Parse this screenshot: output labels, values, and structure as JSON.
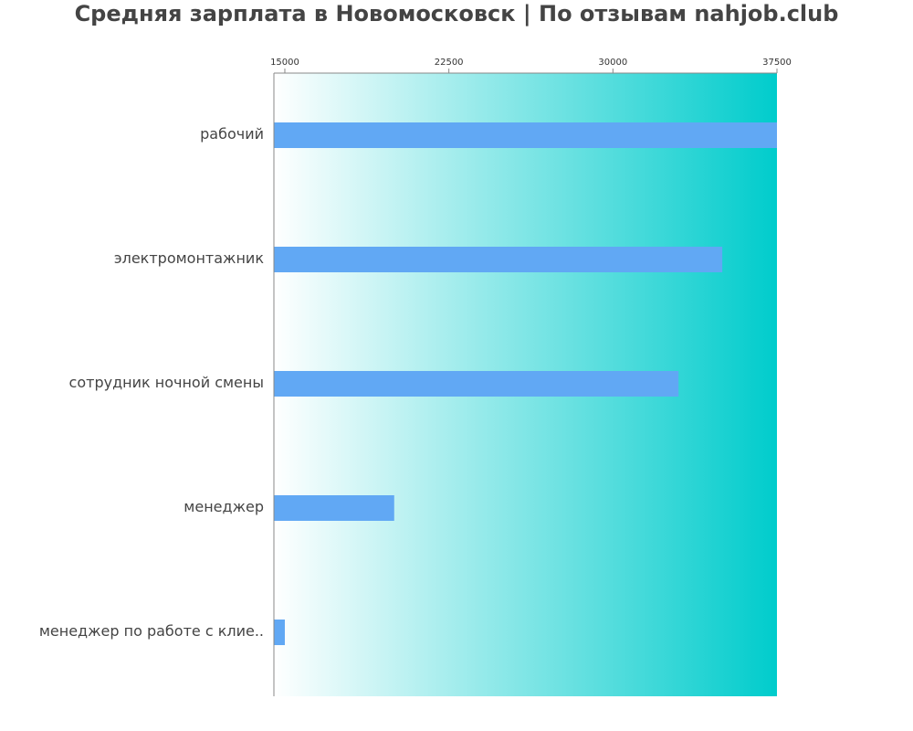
{
  "chart_data": {
    "type": "bar",
    "orientation": "horizontal",
    "title": "Средняя зарплата в Новомосковск | По отзывам nahjob.club",
    "categories": [
      "рабочий",
      "электромонтажник",
      "сотрудник ночной смены",
      "менеджер",
      "менеджер по работе с клие.."
    ],
    "values": [
      37500,
      35000,
      33000,
      20000,
      15000
    ],
    "xlim": [
      14500,
      37500
    ],
    "ticks": [
      15000,
      22500,
      30000,
      37500
    ],
    "tick_labels": [
      "15000",
      "22500",
      "30000",
      "37500"
    ],
    "xlabel": "",
    "ylabel": "",
    "grid": false,
    "axis_position": "top"
  },
  "colors": {
    "bar": "#61a8f4",
    "gradient_start": "#ffffff",
    "gradient_end": "#00cccc",
    "title": "#444444",
    "axis": "#888888"
  }
}
